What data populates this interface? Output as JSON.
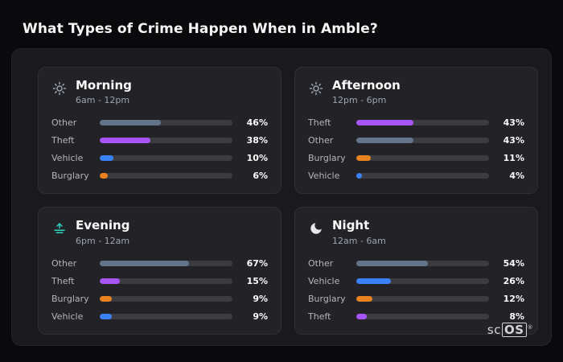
{
  "page_title": "What Types of Crime Happen When in Amble?",
  "logo": {
    "prefix": "sc",
    "suffix": "OS",
    "mark": "®"
  },
  "colors": {
    "other": "#64748b",
    "theft": "#a855f7",
    "vehicle": "#3b82f6",
    "burglary": "#e8821e",
    "icon_gray": "#9ca3af",
    "evening": "#2dd4bf",
    "moon": "#e5e7eb"
  },
  "chart_data": [
    {
      "type": "bar",
      "title": "Morning",
      "subtitle": "6am - 12pm",
      "icon": "sun-icon",
      "unit": "%",
      "xlim": [
        0,
        100
      ],
      "categories": [
        "Other",
        "Theft",
        "Vehicle",
        "Burglary"
      ],
      "values": [
        46,
        38,
        10,
        6
      ]
    },
    {
      "type": "bar",
      "title": "Afternoon",
      "subtitle": "12pm - 6pm",
      "icon": "sun-icon",
      "unit": "%",
      "xlim": [
        0,
        100
      ],
      "categories": [
        "Theft",
        "Other",
        "Burglary",
        "Vehicle"
      ],
      "values": [
        43,
        43,
        11,
        4
      ]
    },
    {
      "type": "bar",
      "title": "Evening",
      "subtitle": "6pm - 12am",
      "icon": "sunset-icon",
      "unit": "%",
      "xlim": [
        0,
        100
      ],
      "categories": [
        "Other",
        "Theft",
        "Burglary",
        "Vehicle"
      ],
      "values": [
        67,
        15,
        9,
        9
      ]
    },
    {
      "type": "bar",
      "title": "Night",
      "subtitle": "12am - 6am",
      "icon": "moon-icon",
      "unit": "%",
      "xlim": [
        0,
        100
      ],
      "categories": [
        "Other",
        "Vehicle",
        "Burglary",
        "Theft"
      ],
      "values": [
        54,
        26,
        12,
        8
      ]
    }
  ]
}
